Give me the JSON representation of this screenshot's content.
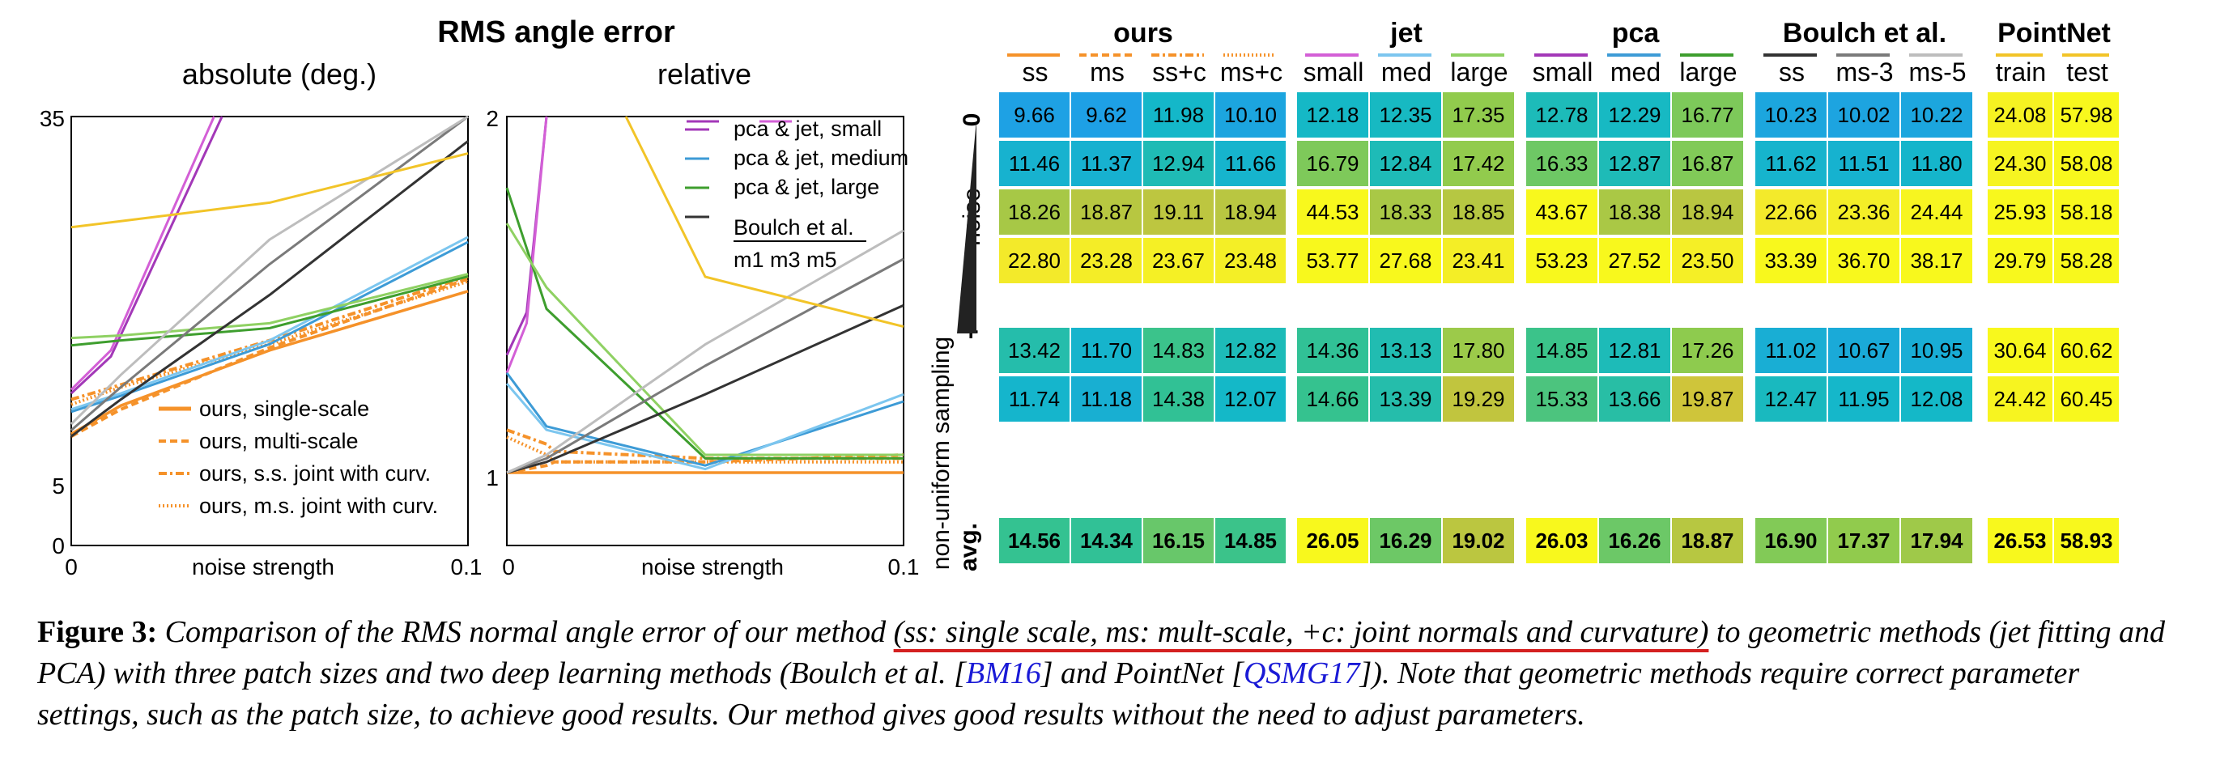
{
  "figure": {
    "overall_title": "RMS angle error",
    "noise_axis_label": "noise strength",
    "colors": {
      "ours": "#F5922A",
      "pca_small": "#A338B8",
      "jet_small": "#D35FD6",
      "pca_medium": "#3D9BD6",
      "jet_medium": "#7CC6EF",
      "pca_large": "#3E9E2E",
      "jet_large": "#8FD163",
      "boulch_m1": "#333333",
      "boulch_m3": "#7A7A7A",
      "boulch_m5": "#BDBDBD",
      "pointnet": "#F2C428"
    }
  },
  "chart_data": [
    {
      "type": "line",
      "title": "absolute (deg.)",
      "xlabel": "noise strength",
      "x_ticks": [
        "0",
        "0.1"
      ],
      "y_ticks": [
        "0",
        "5",
        "35"
      ],
      "x": [
        0,
        0.0025,
        0.005,
        0.01,
        0.012,
        0.1
      ],
      "note_scale": "piecewise y axis: 0-5 compressed, 5-35 linear",
      "ylim": [
        0,
        35
      ],
      "legend": [
        "ours, single-scale",
        "ours, multi-scale",
        "ours, s.s. joint with curv.",
        "ours, m.s. joint with curv."
      ],
      "legend_placement": "lower-left",
      "series": [
        {
          "name": "ours, single-scale",
          "x": [
            0,
            0.0125,
            0.05,
            0.1
          ],
          "values": [
            9.2,
            11.5,
            16.0,
            20.8
          ]
        },
        {
          "name": "ours, multi-scale",
          "x": [
            0,
            0.0125,
            0.05,
            0.1
          ],
          "values": [
            9.0,
            11.2,
            16.2,
            21.8
          ]
        },
        {
          "name": "ours, s.s. joint with curv.",
          "x": [
            0,
            0.0125,
            0.05,
            0.1
          ],
          "values": [
            12.0,
            13.2,
            16.8,
            22.0
          ]
        },
        {
          "name": "ours, m.s. joint with curv.",
          "x": [
            0,
            0.0125,
            0.05,
            0.1
          ],
          "values": [
            11.6,
            13.0,
            16.5,
            21.6
          ]
        },
        {
          "x": [
            0,
            0.01,
            0.038
          ],
          "values": [
            12.5,
            15.5,
            35
          ]
        },
        {
          "x": [
            0,
            0.01,
            0.036
          ],
          "values": [
            12.8,
            16.0,
            35
          ]
        },
        {
          "x": [
            0,
            0.0125,
            0.05,
            0.1
          ],
          "values": [
            11.0,
            12.3,
            16.5,
            24.8
          ]
        },
        {
          "x": [
            0,
            0.0125,
            0.05,
            0.1
          ],
          "values": [
            11.2,
            12.5,
            16.8,
            25.2
          ]
        },
        {
          "x": [
            0,
            0.0125,
            0.05,
            0.1
          ],
          "values": [
            16.4,
            16.8,
            17.8,
            22.0
          ]
        },
        {
          "x": [
            0,
            0.0125,
            0.05,
            0.1
          ],
          "values": [
            17.0,
            17.2,
            18.2,
            22.2
          ]
        },
        {
          "x": [
            0,
            0.0125,
            0.05,
            0.1
          ],
          "values": [
            9.0,
            12.0,
            20.5,
            33.0
          ]
        },
        {
          "x": [
            0,
            0.0125,
            0.05,
            0.1
          ],
          "values": [
            9.5,
            13.0,
            23.0,
            35.0
          ]
        },
        {
          "x": [
            0,
            0.0125,
            0.05,
            0.1
          ],
          "values": [
            10.0,
            14.0,
            25.0,
            35.0
          ]
        },
        {
          "x": [
            0,
            0.0125,
            0.05,
            0.1
          ],
          "values": [
            26.0,
            26.5,
            28.0,
            32.0
          ]
        }
      ]
    },
    {
      "type": "line",
      "title": "relative",
      "xlabel": "noise strength",
      "x_ticks": [
        "0",
        "0.1"
      ],
      "y_ticks": [
        "1",
        "2"
      ],
      "ylim": [
        1,
        2
      ],
      "legend": [
        "pca & jet, small",
        "pca & jet, medium",
        "pca & jet, large",
        "Boulch et al."
      ],
      "legend_sub": "m1 m3 m5",
      "legend_placement": "top-right",
      "series": [
        {
          "x": [
            0,
            0.01,
            0.012,
            0.05,
            0.1
          ],
          "values": [
            1.0,
            1.0,
            1.0,
            1.0,
            1.0
          ]
        },
        {
          "x": [
            0,
            0.01,
            0.012,
            0.05,
            0.1
          ],
          "values": [
            1.0,
            1.02,
            1.03,
            1.03,
            1.05
          ]
        },
        {
          "x": [
            0,
            0.01,
            0.012,
            0.05,
            0.1
          ],
          "values": [
            1.12,
            1.08,
            1.06,
            1.04,
            1.04
          ]
        },
        {
          "x": [
            0,
            0.01,
            0.012,
            0.05,
            0.1
          ],
          "values": [
            1.1,
            1.05,
            1.03,
            1.03,
            1.03
          ]
        },
        {
          "x": [
            0,
            0.005,
            0.01
          ],
          "values": [
            1.33,
            1.45,
            2.0
          ]
        },
        {
          "x": [
            0,
            0.005,
            0.01
          ],
          "values": [
            1.28,
            1.42,
            2.0
          ]
        },
        {
          "x": [
            0,
            0.01,
            0.05,
            0.1
          ],
          "values": [
            1.28,
            1.13,
            1.02,
            1.2
          ]
        },
        {
          "x": [
            0,
            0.01,
            0.05,
            0.1
          ],
          "values": [
            1.25,
            1.12,
            1.01,
            1.22
          ]
        },
        {
          "x": [
            0,
            0.01,
            0.05,
            0.1
          ],
          "values": [
            1.8,
            1.46,
            1.04,
            1.04
          ]
        },
        {
          "x": [
            0,
            0.01,
            0.05,
            0.1
          ],
          "values": [
            1.7,
            1.52,
            1.05,
            1.05
          ]
        },
        {
          "x": [
            0,
            0.01,
            0.05,
            0.1
          ],
          "values": [
            1.0,
            1.03,
            1.22,
            1.47
          ]
        },
        {
          "x": [
            0,
            0.01,
            0.05,
            0.1
          ],
          "values": [
            1.0,
            1.04,
            1.3,
            1.6
          ]
        },
        {
          "x": [
            0,
            0.01,
            0.05,
            0.1
          ],
          "values": [
            1.0,
            1.05,
            1.36,
            1.68
          ]
        },
        {
          "x": [
            0.03,
            0.05,
            0.1
          ],
          "values": [
            2.0,
            1.55,
            1.41
          ]
        }
      ]
    },
    {
      "type": "heatmap",
      "groups": [
        {
          "name": "ours",
          "columns": [
            "ss",
            "ms",
            "ss+c",
            "ms+c"
          ],
          "colors": [
            "#F5922A",
            "#F5922A",
            "#F5922A",
            "#F5922A"
          ]
        },
        {
          "name": "jet",
          "columns": [
            "small",
            "med",
            "large"
          ],
          "colors": [
            "#D35FD6",
            "#7CC6EF",
            "#8FD163"
          ]
        },
        {
          "name": "pca",
          "columns": [
            "small",
            "med",
            "large"
          ],
          "colors": [
            "#A338B8",
            "#3D9BD6",
            "#3E9E2E"
          ]
        },
        {
          "name": "Boulch et al.",
          "columns": [
            "ss",
            "ms-3",
            "ms-5"
          ],
          "colors": [
            "#333333",
            "#7A7A7A",
            "#BDBDBD"
          ]
        },
        {
          "name": "PointNet",
          "columns": [
            "train",
            "test"
          ],
          "colors": [
            "#F2C428",
            "#F2C428"
          ]
        }
      ],
      "row_labels": {
        "noise_top": "0",
        "noise_mid": "noise",
        "noise_bottom": "+",
        "sampling": "non-uniform sampling",
        "avg": "avg."
      },
      "rows": [
        [
          "9.66",
          "9.62",
          "11.98",
          "10.10",
          "12.18",
          "12.35",
          "17.35",
          "12.78",
          "12.29",
          "16.77",
          "10.23",
          "10.02",
          "10.22",
          "24.08",
          "57.98"
        ],
        [
          "11.46",
          "11.37",
          "12.94",
          "11.66",
          "16.79",
          "12.84",
          "17.42",
          "16.33",
          "12.87",
          "16.87",
          "11.62",
          "11.51",
          "11.80",
          "24.30",
          "58.08"
        ],
        [
          "18.26",
          "18.87",
          "19.11",
          "18.94",
          "44.53",
          "18.33",
          "18.85",
          "43.67",
          "18.38",
          "18.94",
          "22.66",
          "23.36",
          "24.44",
          "25.93",
          "58.18"
        ],
        [
          "22.80",
          "23.28",
          "23.67",
          "23.48",
          "53.77",
          "27.68",
          "23.41",
          "53.23",
          "27.52",
          "23.50",
          "33.39",
          "36.70",
          "38.17",
          "29.79",
          "58.28"
        ],
        [
          "13.42",
          "11.70",
          "14.83",
          "12.82",
          "14.36",
          "13.13",
          "17.80",
          "14.85",
          "12.81",
          "17.26",
          "11.02",
          "10.67",
          "10.95",
          "30.64",
          "60.62"
        ],
        [
          "11.74",
          "11.18",
          "14.38",
          "12.07",
          "14.66",
          "13.39",
          "19.29",
          "15.33",
          "13.66",
          "19.87",
          "12.47",
          "11.95",
          "12.08",
          "24.42",
          "60.45"
        ],
        [
          "14.56",
          "14.34",
          "16.15",
          "14.85",
          "26.05",
          "16.29",
          "19.02",
          "26.03",
          "16.26",
          "18.87",
          "16.90",
          "17.37",
          "17.94",
          "26.53",
          "58.93"
        ]
      ],
      "colorscale": [
        "#1F9FE6",
        "#14B8C8",
        "#35C28F",
        "#8ECB4E",
        "#CFC43A",
        "#F2E82C",
        "#F8F81D"
      ]
    }
  ],
  "caption": {
    "label": "Figure 3:",
    "part1": "Comparison of the RMS normal angle error of our method ",
    "highlight": "(ss: single scale, ms: mult-scale, +c: joint normals and curvature)",
    "part2": " to geometric methods (jet fitting and PCA) with three patch sizes and two deep learning methods (Boulch et al. [",
    "cite1": "BM16",
    "part3": "] and PointNet [",
    "cite2": "QSMG17",
    "part4": "]). Note that geometric methods require correct parameter settings, such as the patch size, to achieve good results. Our method gives good results without the need to adjust parameters."
  }
}
